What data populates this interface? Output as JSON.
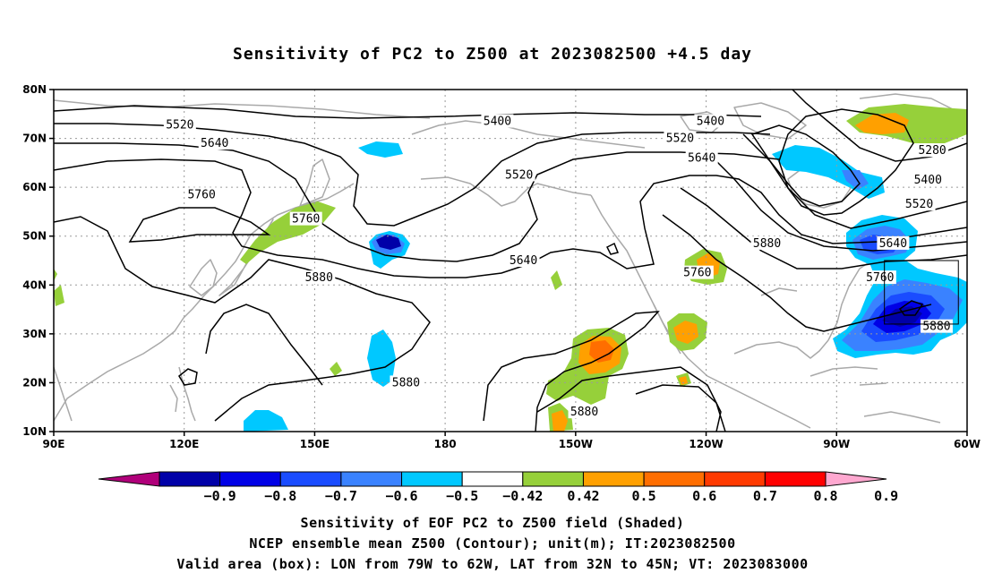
{
  "title": "Sensitivity of PC2 to Z500 at 2023082500 +4.5 day",
  "captions": {
    "line1": "Sensitivity of EOF PC2 to Z500 field (Shaded)",
    "line2": "NCEP ensemble mean Z500 (Contour); unit(m); IT:2023082500",
    "line3": "Valid area (box): LON from 79W to 62W, LAT from 32N to 45N; VT: 2023083000"
  },
  "map": {
    "lon_range": [
      90,
      300
    ],
    "lat_range": [
      10,
      80
    ],
    "lat_ticks": [
      {
        "value": 10,
        "label": "10N"
      },
      {
        "value": 20,
        "label": "20N"
      },
      {
        "value": 30,
        "label": "30N"
      },
      {
        "value": 40,
        "label": "40N"
      },
      {
        "value": 50,
        "label": "50N"
      },
      {
        "value": 60,
        "label": "60N"
      },
      {
        "value": 70,
        "label": "70N"
      },
      {
        "value": 80,
        "label": "80N"
      }
    ],
    "lon_ticks": [
      {
        "value": 90,
        "label": "90E"
      },
      {
        "value": 120,
        "label": "120E"
      },
      {
        "value": 150,
        "label": "150E"
      },
      {
        "value": 180,
        "label": "180"
      },
      {
        "value": 210,
        "label": "150W"
      },
      {
        "value": 240,
        "label": "120W"
      },
      {
        "value": 270,
        "label": "90W"
      },
      {
        "value": 300,
        "label": "60W"
      }
    ],
    "valid_box": {
      "lon": [
        281,
        298
      ],
      "lat": [
        32,
        45
      ]
    },
    "contour_labels": [
      {
        "text": "5520",
        "lon": 119,
        "lat": 72.8
      },
      {
        "text": "5640",
        "lon": 127,
        "lat": 69
      },
      {
        "text": "5760",
        "lon": 124,
        "lat": 58.5
      },
      {
        "text": "5760",
        "lon": 148,
        "lat": 53.5
      },
      {
        "text": "5880",
        "lon": 151,
        "lat": 41.5
      },
      {
        "text": "5400",
        "lon": 192,
        "lat": 73.5
      },
      {
        "text": "5520",
        "lon": 197,
        "lat": 62.5
      },
      {
        "text": "5640",
        "lon": 198,
        "lat": 45
      },
      {
        "text": "5880",
        "lon": 171,
        "lat": 20
      },
      {
        "text": "5400",
        "lon": 241,
        "lat": 73.5
      },
      {
        "text": "5520",
        "lon": 234,
        "lat": 70
      },
      {
        "text": "5640",
        "lon": 239,
        "lat": 66
      },
      {
        "text": "5760",
        "lon": 238,
        "lat": 42.5
      },
      {
        "text": "5880",
        "lon": 254,
        "lat": 48.5
      },
      {
        "text": "5880",
        "lon": 212,
        "lat": 14
      },
      {
        "text": "5640",
        "lon": 283,
        "lat": 48.5
      },
      {
        "text": "5760",
        "lon": 280,
        "lat": 41.5
      },
      {
        "text": "5520",
        "lon": 289,
        "lat": 56.5
      },
      {
        "text": "5400",
        "lon": 291,
        "lat": 61.5
      },
      {
        "text": "5280",
        "lon": 292,
        "lat": 67.5
      },
      {
        "text": "5880",
        "lon": 293,
        "lat": 31.5
      }
    ]
  },
  "colorbar": {
    "labels": [
      "-0.9",
      "-0.8",
      "-0.7",
      "-0.6",
      "-0.5",
      "-0.42",
      "0.42",
      "0.5",
      "0.6",
      "0.7",
      "0.8",
      "0.9"
    ],
    "colors": [
      "#b0007a",
      "#0000a8",
      "#0000e6",
      "#1a4cff",
      "#3a82ff",
      "#00c8ff",
      "#ffffff",
      "#96d03a",
      "#ffa000",
      "#ff6e00",
      "#ff3a00",
      "#ff0000",
      "#ffa8d0"
    ]
  },
  "legend_colors": {
    "contour": "#000000",
    "coastline": "#a9a9a9",
    "grid": "#9a9a9a"
  }
}
